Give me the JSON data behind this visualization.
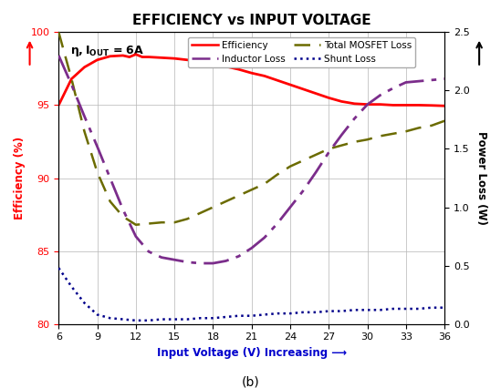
{
  "title": "EFFICIENCY vs INPUT VOLTAGE",
  "xlabel": "Input Voltage (V) Increasing ⟶",
  "ylabel_left": "Efficiency (%)",
  "ylabel_right": "Power Loss (W)",
  "annotation_text": "η, I",
  "subtitle": "(b)",
  "x_ticks": [
    6,
    9,
    12,
    15,
    18,
    21,
    24,
    27,
    30,
    33,
    36
  ],
  "ylim_left": [
    80,
    100
  ],
  "ylim_right": [
    0,
    2.5
  ],
  "y_ticks_left": [
    80,
    85,
    90,
    95,
    100
  ],
  "y_ticks_right": [
    0,
    0.5,
    1.0,
    1.5,
    2.0,
    2.5
  ],
  "efficiency": {
    "x": [
      6,
      7,
      8,
      9,
      10,
      11,
      11.5,
      12,
      12.5,
      13,
      14,
      15,
      16,
      17,
      18,
      19,
      20,
      21,
      22,
      23,
      24,
      25,
      26,
      27,
      28,
      29,
      30,
      31,
      32,
      33,
      34,
      35,
      36
    ],
    "y": [
      95.0,
      96.8,
      97.6,
      98.1,
      98.35,
      98.4,
      98.3,
      98.48,
      98.3,
      98.3,
      98.25,
      98.2,
      98.1,
      98.0,
      97.85,
      97.65,
      97.45,
      97.2,
      97.0,
      96.7,
      96.4,
      96.1,
      95.8,
      95.5,
      95.25,
      95.1,
      95.05,
      95.05,
      95.0,
      95.0,
      95.0,
      94.98,
      94.95
    ],
    "color": "#ff0000",
    "linewidth": 2.0,
    "label": "Efficiency"
  },
  "mosfet_loss": {
    "x": [
      6,
      7,
      8,
      9,
      10,
      11,
      12,
      13,
      14,
      15,
      16,
      17,
      18,
      19,
      20,
      21,
      22,
      23,
      24,
      25,
      26,
      27,
      28,
      29,
      30,
      31,
      32,
      33,
      34,
      35,
      36
    ],
    "y": [
      2.5,
      2.1,
      1.65,
      1.3,
      1.05,
      0.92,
      0.85,
      0.86,
      0.87,
      0.87,
      0.9,
      0.95,
      1.0,
      1.05,
      1.1,
      1.15,
      1.2,
      1.28,
      1.35,
      1.4,
      1.45,
      1.5,
      1.53,
      1.56,
      1.58,
      1.61,
      1.63,
      1.65,
      1.68,
      1.7,
      1.74
    ],
    "color": "#6b6b00",
    "linewidth": 1.8,
    "label": "Total MOSFET Loss"
  },
  "inductor_loss": {
    "x": [
      6,
      7,
      8,
      9,
      10,
      11,
      12,
      13,
      14,
      15,
      16,
      17,
      18,
      19,
      20,
      21,
      22,
      23,
      24,
      25,
      26,
      27,
      28,
      29,
      30,
      31,
      32,
      33,
      34,
      35,
      36
    ],
    "y": [
      2.3,
      2.05,
      1.78,
      1.52,
      1.25,
      0.98,
      0.75,
      0.62,
      0.57,
      0.55,
      0.53,
      0.52,
      0.52,
      0.54,
      0.58,
      0.65,
      0.74,
      0.86,
      1.0,
      1.14,
      1.3,
      1.47,
      1.62,
      1.76,
      1.88,
      1.96,
      2.02,
      2.07,
      2.08,
      2.09,
      2.1
    ],
    "color": "#7b2d8b",
    "linewidth": 2.0,
    "label": "Inductor Loss"
  },
  "shunt_loss": {
    "x": [
      6,
      7,
      8,
      9,
      10,
      11,
      12,
      13,
      14,
      15,
      16,
      17,
      18,
      19,
      20,
      21,
      22,
      23,
      24,
      25,
      26,
      27,
      28,
      29,
      30,
      31,
      32,
      33,
      34,
      35,
      36
    ],
    "y": [
      0.48,
      0.32,
      0.18,
      0.08,
      0.05,
      0.04,
      0.03,
      0.03,
      0.04,
      0.04,
      0.04,
      0.05,
      0.05,
      0.06,
      0.07,
      0.07,
      0.08,
      0.09,
      0.09,
      0.1,
      0.1,
      0.11,
      0.11,
      0.12,
      0.12,
      0.12,
      0.13,
      0.13,
      0.13,
      0.14,
      0.14
    ],
    "color": "#00008b",
    "linewidth": 1.8,
    "label": "Shunt Loss"
  },
  "bg_color": "#ffffff",
  "grid_color": "#bbbbbb",
  "xlabel_color": "#0000cc",
  "ylabel_left_color": "#ff0000",
  "ylabel_right_color": "#000000"
}
